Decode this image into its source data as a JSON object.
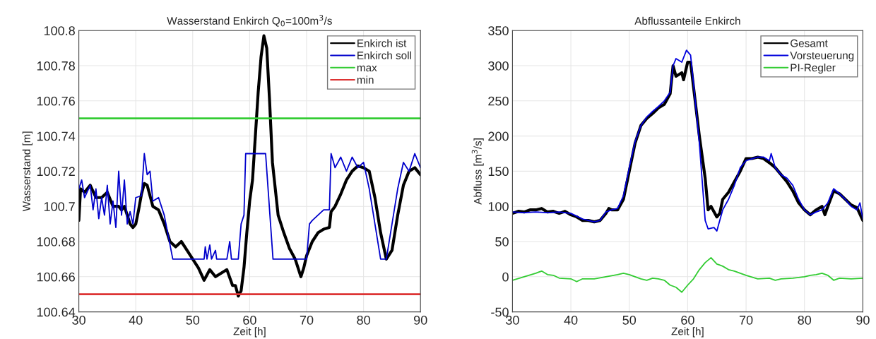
{
  "chart_data": [
    {
      "type": "line",
      "title": "Wasserstand Enkirch Q$_{0}$=100m$^{3}$/s",
      "xlabel": "Zeit [h]",
      "ylabel": "Wasserstand [m]",
      "xlim": [
        30,
        90
      ],
      "xticks": [
        30,
        40,
        50,
        60,
        70,
        80,
        90
      ],
      "ylim": [
        100.64,
        100.8
      ],
      "yticks": [
        100.64,
        100.66,
        100.68,
        100.7,
        100.72,
        100.74,
        100.76,
        100.78,
        100.8
      ],
      "grid": true,
      "legend": "top right",
      "series": [
        {
          "name": "Enkirch ist",
          "color": "#000000",
          "x": [
            30,
            30.3,
            31,
            32,
            33,
            34,
            35,
            36,
            37,
            37.5,
            38,
            38.5,
            39,
            39.5,
            40,
            40.5,
            41,
            41.5,
            42,
            43,
            44,
            45,
            46,
            47,
            48,
            49,
            50,
            51,
            52,
            53,
            54,
            55,
            56,
            57,
            57.5,
            58,
            58.5,
            59,
            59.5,
            60,
            60.5,
            61,
            61.5,
            62,
            62.5,
            63,
            63.5,
            64,
            65,
            66,
            67,
            68,
            69,
            69.5,
            70,
            71,
            72,
            73,
            74,
            74.3,
            75,
            76,
            77,
            78,
            79,
            80,
            81,
            82,
            83,
            84,
            85,
            86,
            87,
            88,
            89,
            90
          ],
          "values": [
            100.692,
            100.71,
            100.708,
            100.712,
            100.705,
            100.705,
            100.708,
            100.7,
            100.7,
            100.698,
            100.7,
            100.695,
            100.69,
            100.688,
            100.69,
            100.698,
            100.707,
            100.713,
            100.712,
            100.7,
            100.698,
            100.69,
            100.68,
            100.677,
            100.68,
            100.675,
            100.67,
            100.665,
            100.658,
            100.664,
            100.66,
            100.662,
            100.664,
            100.655,
            100.655,
            100.649,
            100.652,
            100.665,
            100.685,
            100.703,
            100.715,
            100.74,
            100.765,
            100.785,
            100.797,
            100.79,
            100.76,
            100.725,
            100.695,
            100.685,
            100.676,
            100.67,
            100.66,
            100.665,
            100.672,
            100.68,
            100.685,
            100.687,
            100.688,
            100.697,
            100.7,
            100.707,
            100.715,
            100.72,
            100.723,
            100.722,
            100.72,
            100.705,
            100.685,
            100.67,
            100.675,
            100.695,
            100.712,
            100.72,
            100.722,
            100.718
          ]
        },
        {
          "name": "Enkirch soll",
          "color": "#0000cc",
          "x": [
            30,
            30.5,
            31,
            32,
            32.5,
            33,
            33.5,
            34,
            34.5,
            35,
            35.5,
            36,
            36.5,
            37,
            37.5,
            38,
            38.5,
            39,
            39.5,
            40,
            41,
            41.5,
            42,
            42.5,
            43,
            44,
            45,
            46.5,
            52,
            52.2,
            52.5,
            53,
            53.3,
            54,
            54.2,
            56,
            56.5,
            56.8,
            58,
            58.5,
            59,
            59.3,
            62.8,
            64.1,
            70,
            70.5,
            71,
            72,
            73,
            74,
            74.3,
            75,
            76,
            77,
            78,
            79,
            80,
            81,
            82,
            83,
            84,
            84.5,
            85,
            86,
            87,
            88,
            89,
            90
          ],
          "values": [
            100.71,
            100.715,
            100.705,
            100.712,
            100.698,
            100.71,
            100.693,
            100.705,
            100.695,
            100.712,
            100.69,
            100.703,
            100.688,
            100.72,
            100.695,
            100.715,
            100.69,
            100.697,
            100.69,
            100.705,
            100.706,
            100.73,
            100.718,
            100.72,
            100.703,
            100.705,
            100.695,
            100.67,
            100.67,
            100.677,
            100.67,
            100.678,
            100.67,
            100.675,
            100.67,
            100.67,
            100.68,
            100.67,
            100.67,
            100.69,
            100.695,
            100.73,
            100.73,
            100.67,
            100.67,
            100.69,
            100.692,
            100.695,
            100.698,
            100.698,
            100.73,
            100.722,
            100.728,
            100.72,
            100.728,
            100.722,
            100.725,
            100.71,
            100.69,
            100.67,
            100.67,
            100.68,
            100.69,
            100.71,
            100.725,
            100.72,
            100.73,
            100.722
          ]
        }
      ],
      "ref_lines": [
        {
          "axis": "y",
          "value": 100.75,
          "label": "max",
          "color": "#33cc33"
        },
        {
          "axis": "y",
          "value": 100.65,
          "label": "min",
          "color": "#dd3333"
        }
      ]
    },
    {
      "type": "line",
      "title": "Abflussanteile Enkirch",
      "xlabel": "Zeit [h]",
      "ylabel": "Abfluss [m$^{3}$/s]",
      "xlim": [
        30,
        90
      ],
      "xticks": [
        30,
        40,
        50,
        60,
        70,
        80,
        90
      ],
      "ylim": [
        -50,
        350
      ],
      "yticks": [
        -50,
        0,
        50,
        100,
        150,
        200,
        250,
        300,
        350
      ],
      "grid": true,
      "legend": "top right",
      "series": [
        {
          "name": "Gesamt",
          "color": "#000000",
          "x": [
            30,
            31,
            32,
            33,
            34,
            35,
            36,
            37,
            38,
            39,
            40,
            41,
            42,
            43,
            44,
            45,
            46,
            46.5,
            47,
            48,
            49,
            50,
            51,
            52,
            53,
            54,
            55,
            56,
            57,
            57.5,
            58,
            59,
            59.3,
            60,
            60.5,
            61,
            62,
            63,
            63.5,
            64,
            65,
            65.5,
            66,
            67,
            68,
            69,
            70,
            71,
            72,
            73,
            74,
            75,
            76,
            77,
            78,
            79,
            80,
            81,
            82,
            83,
            83.5,
            84,
            85,
            86,
            87,
            88,
            89,
            90
          ],
          "values": [
            90,
            93,
            92,
            95,
            95,
            97,
            92,
            93,
            90,
            93,
            88,
            85,
            80,
            80,
            78,
            80,
            90,
            97,
            95,
            95,
            110,
            150,
            190,
            215,
            225,
            232,
            240,
            245,
            260,
            300,
            285,
            290,
            280,
            305,
            305,
            270,
            200,
            140,
            95,
            100,
            85,
            90,
            110,
            120,
            135,
            150,
            168,
            168,
            170,
            168,
            162,
            155,
            145,
            135,
            122,
            105,
            95,
            88,
            95,
            100,
            88,
            100,
            122,
            118,
            110,
            102,
            98,
            80
          ]
        },
        {
          "name": "Vorsteuerung",
          "color": "#0000dd",
          "x": [
            30,
            32,
            34,
            36,
            38,
            40,
            42,
            44,
            45,
            46,
            47,
            48,
            49,
            50,
            51,
            52,
            53,
            54,
            55,
            56,
            57,
            57.5,
            58,
            59,
            59.8,
            60.5,
            61,
            62,
            63,
            63.5,
            64.5,
            65,
            66,
            67,
            68,
            69,
            70,
            72,
            73,
            74,
            74.3,
            75,
            76,
            77,
            78,
            79,
            80,
            81,
            82,
            83,
            84,
            85,
            86,
            87,
            88,
            89,
            89.5,
            90
          ],
          "values": [
            92,
            91,
            92,
            91,
            92,
            90,
            82,
            78,
            80,
            92,
            95,
            97,
            115,
            155,
            192,
            215,
            227,
            235,
            242,
            250,
            262,
            300,
            310,
            305,
            322,
            315,
            275,
            190,
            80,
            68,
            70,
            65,
            95,
            110,
            130,
            155,
            165,
            170,
            170,
            165,
            175,
            155,
            145,
            140,
            130,
            110,
            95,
            88,
            92,
            95,
            105,
            125,
            118,
            110,
            100,
            95,
            105,
            82
          ]
        },
        {
          "name": "PI-Regler",
          "color": "#33cc33",
          "x": [
            30,
            32,
            34,
            35,
            36,
            37,
            38,
            40,
            41,
            42,
            44,
            46,
            48,
            49,
            50,
            52,
            53,
            54,
            55,
            56,
            57,
            58,
            59,
            60,
            61,
            62,
            63,
            64,
            65,
            66,
            67,
            68,
            69,
            70,
            72,
            74,
            75,
            76,
            78,
            80,
            81,
            82,
            83,
            84,
            85,
            86,
            88,
            90
          ],
          "values": [
            -5,
            0,
            5,
            8,
            3,
            2,
            -2,
            -3,
            -7,
            -3,
            -3,
            0,
            3,
            5,
            3,
            -3,
            -5,
            -2,
            -3,
            -5,
            -12,
            -15,
            -22,
            -12,
            -3,
            10,
            20,
            27,
            18,
            15,
            10,
            8,
            5,
            2,
            -3,
            -2,
            -5,
            -3,
            -2,
            0,
            2,
            3,
            5,
            2,
            -5,
            -2,
            -3,
            -2
          ]
        }
      ]
    }
  ]
}
